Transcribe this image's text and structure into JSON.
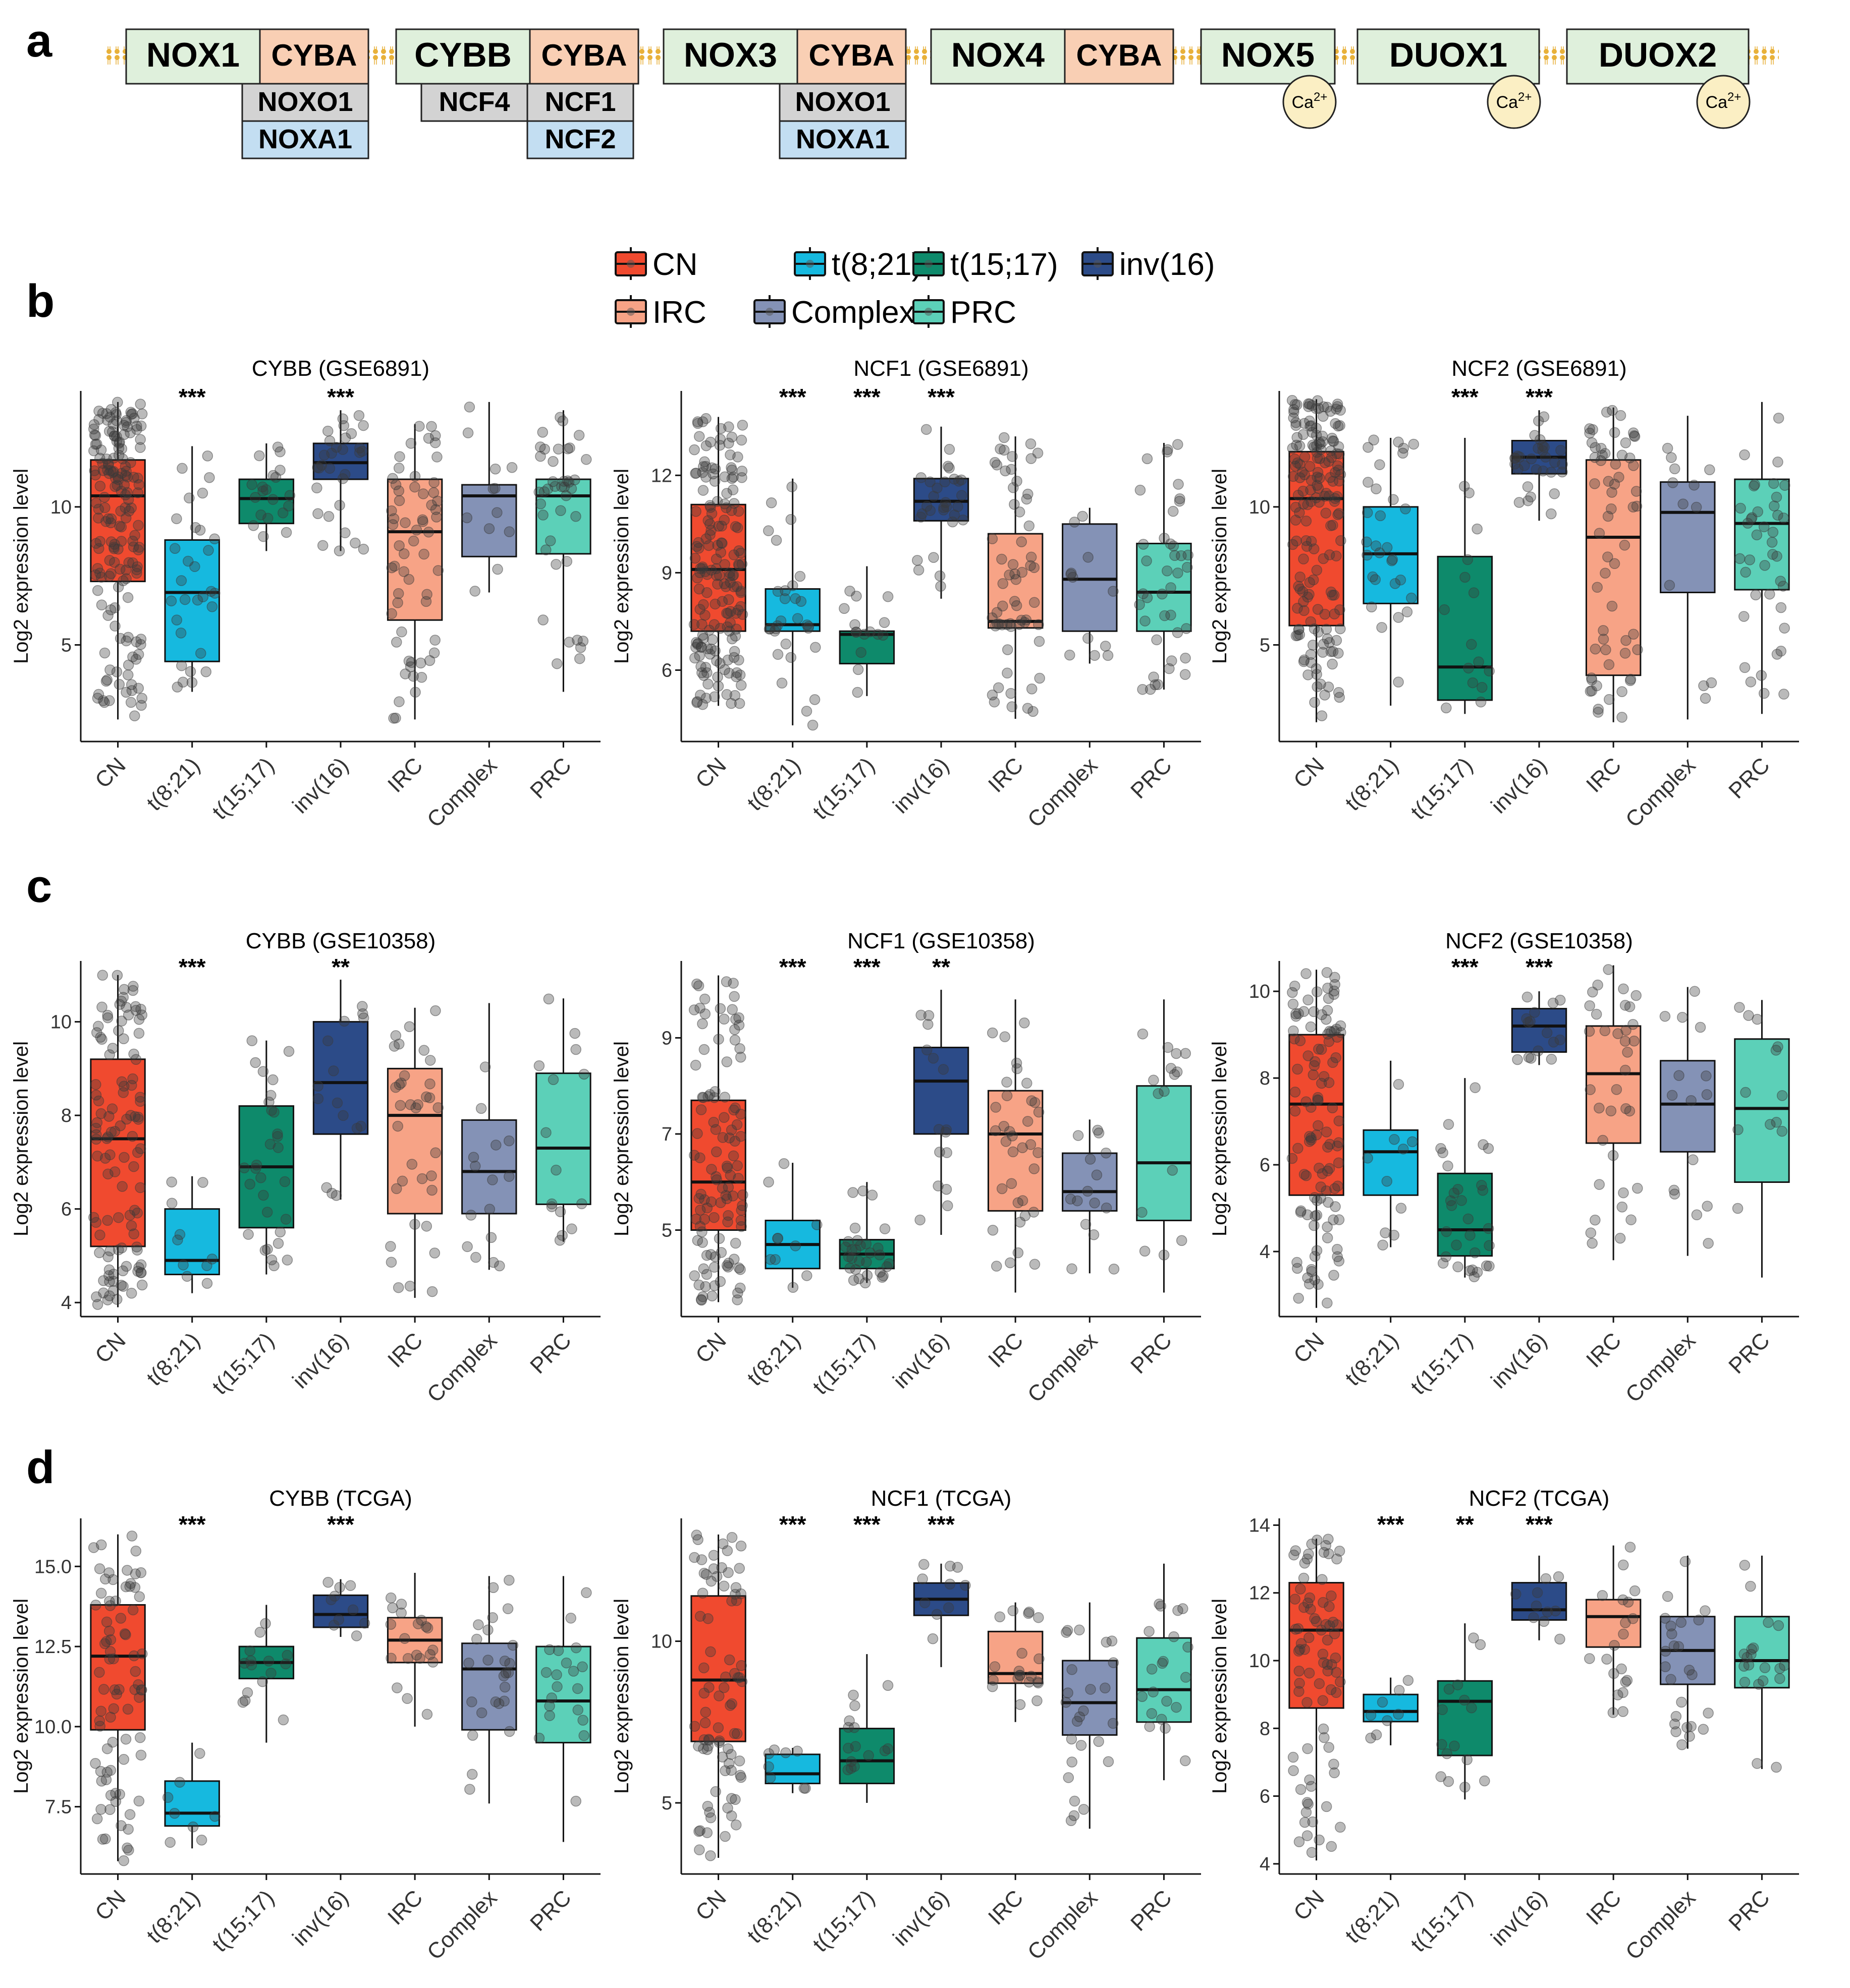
{
  "panel_labels": {
    "a": "a",
    "b": "b",
    "c": "c",
    "d": "d"
  },
  "diagram": {
    "complexes": [
      {
        "main": "NOX1",
        "partner": "CYBA",
        "subunits": [
          "NOXO1",
          "NOXA1"
        ],
        "calcium": ""
      },
      {
        "main": "CYBB",
        "partner": "CYBA",
        "subunits": [
          "NCF4",
          "NCF1",
          "NCF2"
        ],
        "calcium": ""
      },
      {
        "main": "NOX3",
        "partner": "CYBA",
        "subunits": [
          "NOXO1",
          "NOXA1"
        ],
        "calcium": ""
      },
      {
        "main": "NOX4",
        "partner": "CYBA",
        "subunits": [],
        "calcium": ""
      },
      {
        "main": "NOX5",
        "partner": "",
        "subunits": [],
        "calcium": "Ca2+"
      },
      {
        "main": "DUOX1",
        "partner": "",
        "subunits": [],
        "calcium": "Ca2+"
      },
      {
        "main": "DUOX2",
        "partner": "",
        "subunits": [],
        "calcium": "Ca2+"
      }
    ],
    "colors": {
      "main": "#dff0dc",
      "partner": "#f9cfb4",
      "organizer": "#d3d3d3",
      "activator": "#c3def2",
      "calcium": "#fbefc4",
      "membrane": "#e8b13a"
    }
  },
  "legend": {
    "items": [
      {
        "label": "CN",
        "color": "#f04a2f"
      },
      {
        "label": "t(8;21)",
        "color": "#16b9df"
      },
      {
        "label": "t(15;17)",
        "color": "#0e8a6b"
      },
      {
        "label": "inv(16)",
        "color": "#2c4b88"
      },
      {
        "label": "IRC",
        "color": "#f7a386"
      },
      {
        "label": "Complex",
        "color": "#8492b6"
      },
      {
        "label": "PRC",
        "color": "#5cd0b8"
      }
    ]
  },
  "chart_data": [
    {
      "type": "box",
      "panel": "b",
      "title": "CYBB (GSE6891)",
      "ylabel": "Log2 expression level",
      "categories": [
        "CN",
        "t(8;21)",
        "t(15;17)",
        "inv(16)",
        "IRC",
        "Complex",
        "PRC"
      ],
      "ylim": [
        1.5,
        14.2
      ],
      "yticks": [
        5,
        10
      ],
      "boxes": [
        {
          "min": 2.3,
          "q1": 7.3,
          "median": 10.4,
          "q3": 11.7,
          "max": 13.8
        },
        {
          "min": 3.3,
          "q1": 4.4,
          "median": 6.9,
          "q3": 8.8,
          "max": 12.2
        },
        {
          "min": 8.4,
          "q1": 9.4,
          "median": 10.3,
          "q3": 11.0,
          "max": 12.3
        },
        {
          "min": 8.4,
          "q1": 11.0,
          "median": 11.6,
          "q3": 12.3,
          "max": 13.5
        },
        {
          "min": 2.3,
          "q1": 5.9,
          "median": 9.1,
          "q3": 11.0,
          "max": 13.0
        },
        {
          "min": 6.9,
          "q1": 8.2,
          "median": 10.4,
          "q3": 10.8,
          "max": 13.8
        },
        {
          "min": 3.3,
          "q1": 8.3,
          "median": 10.4,
          "q3": 11.0,
          "max": 13.5
        }
      ],
      "n_points": [
        170,
        30,
        20,
        30,
        60,
        12,
        40
      ],
      "significance": [
        "",
        "***",
        "",
        "***",
        "",
        "",
        ""
      ]
    },
    {
      "type": "box",
      "panel": "b",
      "title": "NCF1 (GSE6891)",
      "ylabel": "Log2 expression level",
      "categories": [
        "CN",
        "t(8;21)",
        "t(15;17)",
        "inv(16)",
        "IRC",
        "Complex",
        "PRC"
      ],
      "ylim": [
        3.8,
        14.6
      ],
      "yticks": [
        6,
        9,
        12
      ],
      "boxes": [
        {
          "min": 4.9,
          "q1": 7.2,
          "median": 9.1,
          "q3": 11.1,
          "max": 13.8
        },
        {
          "min": 4.3,
          "q1": 7.2,
          "median": 7.4,
          "q3": 8.5,
          "max": 11.9
        },
        {
          "min": 5.2,
          "q1": 6.2,
          "median": 7.1,
          "q3": 7.2,
          "max": 9.2
        },
        {
          "min": 8.2,
          "q1": 10.6,
          "median": 11.2,
          "q3": 11.9,
          "max": 13.5
        },
        {
          "min": 4.5,
          "q1": 7.3,
          "median": 7.5,
          "q3": 10.2,
          "max": 13.2
        },
        {
          "min": 6.2,
          "q1": 7.2,
          "median": 8.8,
          "q3": 10.5,
          "max": 11.0
        },
        {
          "min": 5.4,
          "q1": 7.2,
          "median": 8.4,
          "q3": 9.9,
          "max": 13.0
        }
      ],
      "n_points": [
        170,
        30,
        15,
        30,
        60,
        12,
        40
      ],
      "significance": [
        "",
        "***",
        "***",
        "***",
        "",
        "",
        ""
      ]
    },
    {
      "type": "box",
      "panel": "b",
      "title": "NCF2 (GSE6891)",
      "ylabel": "Log2 expression level",
      "categories": [
        "CN",
        "t(8;21)",
        "t(15;17)",
        "inv(16)",
        "IRC",
        "Complex",
        "PRC"
      ],
      "ylim": [
        1.5,
        14.2
      ],
      "yticks": [
        5,
        10
      ],
      "boxes": [
        {
          "min": 2.2,
          "q1": 5.7,
          "median": 10.3,
          "q3": 12.0,
          "max": 13.9
        },
        {
          "min": 2.8,
          "q1": 6.5,
          "median": 8.3,
          "q3": 10.0,
          "max": 12.5
        },
        {
          "min": 2.5,
          "q1": 3.0,
          "median": 4.2,
          "q3": 8.2,
          "max": 12.5
        },
        {
          "min": 9.5,
          "q1": 11.2,
          "median": 11.8,
          "q3": 12.4,
          "max": 13.5
        },
        {
          "min": 2.2,
          "q1": 3.9,
          "median": 8.9,
          "q3": 11.7,
          "max": 13.6
        },
        {
          "min": 2.3,
          "q1": 6.9,
          "median": 9.8,
          "q3": 10.9,
          "max": 13.3
        },
        {
          "min": 2.5,
          "q1": 7.0,
          "median": 9.4,
          "q3": 11.0,
          "max": 13.8
        }
      ],
      "n_points": [
        170,
        30,
        15,
        30,
        60,
        12,
        40
      ],
      "significance": [
        "",
        "",
        "***",
        "***",
        "",
        "",
        ""
      ]
    },
    {
      "type": "box",
      "panel": "c",
      "title": "CYBB (GSE10358)",
      "ylabel": "Log2 expression level",
      "categories": [
        "CN",
        "t(8;21)",
        "t(15;17)",
        "inv(16)",
        "IRC",
        "Complex",
        "PRC"
      ],
      "ylim": [
        3.7,
        11.3
      ],
      "yticks": [
        4,
        6,
        8,
        10
      ],
      "boxes": [
        {
          "min": 3.9,
          "q1": 5.2,
          "median": 7.5,
          "q3": 9.2,
          "max": 11.0
        },
        {
          "min": 4.2,
          "q1": 4.6,
          "median": 4.9,
          "q3": 6.0,
          "max": 6.7
        },
        {
          "min": 4.6,
          "q1": 5.6,
          "median": 6.9,
          "q3": 8.2,
          "max": 9.6
        },
        {
          "min": 6.2,
          "q1": 7.6,
          "median": 8.7,
          "q3": 10.0,
          "max": 10.9
        },
        {
          "min": 4.1,
          "q1": 5.9,
          "median": 8.0,
          "q3": 9.0,
          "max": 10.3
        },
        {
          "min": 4.7,
          "q1": 5.9,
          "median": 6.8,
          "q3": 7.9,
          "max": 10.4
        },
        {
          "min": 5.3,
          "q1": 6.1,
          "median": 7.3,
          "q3": 8.9,
          "max": 10.5
        }
      ],
      "n_points": [
        110,
        10,
        30,
        15,
        35,
        15,
        15
      ],
      "significance": [
        "",
        "***",
        "",
        "**",
        "",
        "",
        ""
      ]
    },
    {
      "type": "box",
      "panel": "c",
      "title": "NCF1 (GSE10358)",
      "ylabel": "Log2 expression level",
      "categories": [
        "CN",
        "t(8;21)",
        "t(15;17)",
        "inv(16)",
        "IRC",
        "Complex",
        "PRC"
      ],
      "ylim": [
        3.2,
        10.6
      ],
      "yticks": [
        5,
        7,
        9
      ],
      "boxes": [
        {
          "min": 3.5,
          "q1": 5.0,
          "median": 6.0,
          "q3": 7.7,
          "max": 10.3
        },
        {
          "min": 3.8,
          "q1": 4.2,
          "median": 4.7,
          "q3": 5.2,
          "max": 6.4
        },
        {
          "min": 3.9,
          "q1": 4.2,
          "median": 4.5,
          "q3": 4.8,
          "max": 6.0
        },
        {
          "min": 4.9,
          "q1": 7.0,
          "median": 8.1,
          "q3": 8.8,
          "max": 10.0
        },
        {
          "min": 3.7,
          "q1": 5.4,
          "median": 7.0,
          "q3": 7.9,
          "max": 9.8
        },
        {
          "min": 4.1,
          "q1": 5.4,
          "median": 5.8,
          "q3": 6.6,
          "max": 7.3
        },
        {
          "min": 3.7,
          "q1": 5.2,
          "median": 6.4,
          "q3": 8.0,
          "max": 9.8
        }
      ],
      "n_points": [
        110,
        10,
        30,
        15,
        35,
        15,
        15
      ],
      "significance": [
        "",
        "***",
        "***",
        "**",
        "",
        "",
        ""
      ]
    },
    {
      "type": "box",
      "panel": "c",
      "title": "NCF2 (GSE10358)",
      "ylabel": "Log2 expression level",
      "categories": [
        "CN",
        "t(8;21)",
        "t(15;17)",
        "inv(16)",
        "IRC",
        "Complex",
        "PRC"
      ],
      "ylim": [
        2.5,
        10.7
      ],
      "yticks": [
        4,
        6,
        8,
        10
      ],
      "boxes": [
        {
          "min": 2.7,
          "q1": 5.3,
          "median": 7.4,
          "q3": 9.0,
          "max": 10.5
        },
        {
          "min": 4.1,
          "q1": 5.3,
          "median": 6.3,
          "q3": 6.8,
          "max": 8.4
        },
        {
          "min": 3.4,
          "q1": 3.9,
          "median": 4.5,
          "q3": 5.8,
          "max": 8.0
        },
        {
          "min": 8.3,
          "q1": 8.6,
          "median": 9.2,
          "q3": 9.6,
          "max": 10.0
        },
        {
          "min": 3.8,
          "q1": 6.5,
          "median": 8.1,
          "q3": 9.2,
          "max": 10.6
        },
        {
          "min": 3.9,
          "q1": 6.3,
          "median": 7.4,
          "q3": 8.4,
          "max": 10.1
        },
        {
          "min": 3.4,
          "q1": 5.6,
          "median": 7.3,
          "q3": 8.9,
          "max": 9.8
        }
      ],
      "n_points": [
        110,
        10,
        30,
        15,
        35,
        15,
        12
      ],
      "significance": [
        "",
        "",
        "***",
        "***",
        "",
        "",
        ""
      ]
    },
    {
      "type": "box",
      "panel": "d",
      "title": "CYBB (TCGA)",
      "ylabel": "Log2 expression level",
      "categories": [
        "CN",
        "t(8;21)",
        "t(15;17)",
        "inv(16)",
        "IRC",
        "Complex",
        "PRC"
      ],
      "ylim": [
        5.4,
        16.5
      ],
      "yticks": [
        7.5,
        10.0,
        12.5,
        15.0
      ],
      "yticklabels": [
        "7.5",
        "10.0",
        "12.5",
        "15.0"
      ],
      "boxes": [
        {
          "min": 5.8,
          "q1": 9.9,
          "median": 12.2,
          "q3": 13.8,
          "max": 16.0
        },
        {
          "min": 6.2,
          "q1": 6.9,
          "median": 7.3,
          "q3": 8.3,
          "max": 9.5
        },
        {
          "min": 9.5,
          "q1": 11.5,
          "median": 12.0,
          "q3": 12.5,
          "max": 13.8
        },
        {
          "min": 12.8,
          "q1": 13.1,
          "median": 13.5,
          "q3": 14.1,
          "max": 14.6
        },
        {
          "min": 10.0,
          "q1": 12.0,
          "median": 12.7,
          "q3": 13.4,
          "max": 14.8
        },
        {
          "min": 7.6,
          "q1": 9.9,
          "median": 11.8,
          "q3": 12.6,
          "max": 14.7
        },
        {
          "min": 6.4,
          "q1": 9.5,
          "median": 10.8,
          "q3": 12.5,
          "max": 14.7
        }
      ],
      "n_points": [
        80,
        8,
        15,
        10,
        20,
        25,
        20
      ],
      "significance": [
        "",
        "***",
        "",
        "***",
        "",
        "",
        ""
      ]
    },
    {
      "type": "box",
      "panel": "d",
      "title": "NCF1 (TCGA)",
      "ylabel": "Log2 expression level",
      "categories": [
        "CN",
        "t(8;21)",
        "t(15;17)",
        "inv(16)",
        "IRC",
        "Complex",
        "PRC"
      ],
      "ylim": [
        2.8,
        13.8
      ],
      "yticks": [
        5,
        10
      ],
      "boxes": [
        {
          "min": 3.3,
          "q1": 6.9,
          "median": 8.8,
          "q3": 11.4,
          "max": 13.3
        },
        {
          "min": 5.3,
          "q1": 5.6,
          "median": 5.9,
          "q3": 6.5,
          "max": 6.7
        },
        {
          "min": 5.0,
          "q1": 5.6,
          "median": 6.3,
          "q3": 7.3,
          "max": 9.6
        },
        {
          "min": 9.2,
          "q1": 10.8,
          "median": 11.3,
          "q3": 11.8,
          "max": 12.4
        },
        {
          "min": 7.5,
          "q1": 8.7,
          "median": 9.0,
          "q3": 10.3,
          "max": 11.2
        },
        {
          "min": 4.2,
          "q1": 7.1,
          "median": 8.1,
          "q3": 9.4,
          "max": 11.2
        },
        {
          "min": 5.7,
          "q1": 7.5,
          "median": 8.5,
          "q3": 10.1,
          "max": 12.4
        }
      ],
      "n_points": [
        80,
        8,
        15,
        10,
        20,
        25,
        20
      ],
      "significance": [
        "",
        "***",
        "***",
        "***",
        "",
        "",
        ""
      ]
    },
    {
      "type": "box",
      "panel": "d",
      "title": "NCF2 (TCGA)",
      "ylabel": "Log2 expression level",
      "categories": [
        "CN",
        "t(8;21)",
        "t(15;17)",
        "inv(16)",
        "IRC",
        "Complex",
        "PRC"
      ],
      "ylim": [
        3.7,
        14.2
      ],
      "yticks": [
        4,
        6,
        8,
        10,
        12,
        14
      ],
      "boxes": [
        {
          "min": 4.1,
          "q1": 8.6,
          "median": 10.9,
          "q3": 12.3,
          "max": 13.6
        },
        {
          "min": 7.5,
          "q1": 8.2,
          "median": 8.5,
          "q3": 9.0,
          "max": 9.5
        },
        {
          "min": 5.9,
          "q1": 7.2,
          "median": 8.8,
          "q3": 9.4,
          "max": 11.1
        },
        {
          "min": 10.6,
          "q1": 11.2,
          "median": 11.5,
          "q3": 12.3,
          "max": 13.1
        },
        {
          "min": 8.4,
          "q1": 10.4,
          "median": 11.3,
          "q3": 11.8,
          "max": 13.4
        },
        {
          "min": 7.4,
          "q1": 9.3,
          "median": 10.3,
          "q3": 11.3,
          "max": 13.1
        },
        {
          "min": 6.8,
          "q1": 9.2,
          "median": 10.0,
          "q3": 11.3,
          "max": 13.1
        }
      ],
      "n_points": [
        80,
        8,
        15,
        10,
        20,
        25,
        20
      ],
      "significance": [
        "",
        "***",
        "**",
        "***",
        "",
        "",
        ""
      ]
    }
  ]
}
